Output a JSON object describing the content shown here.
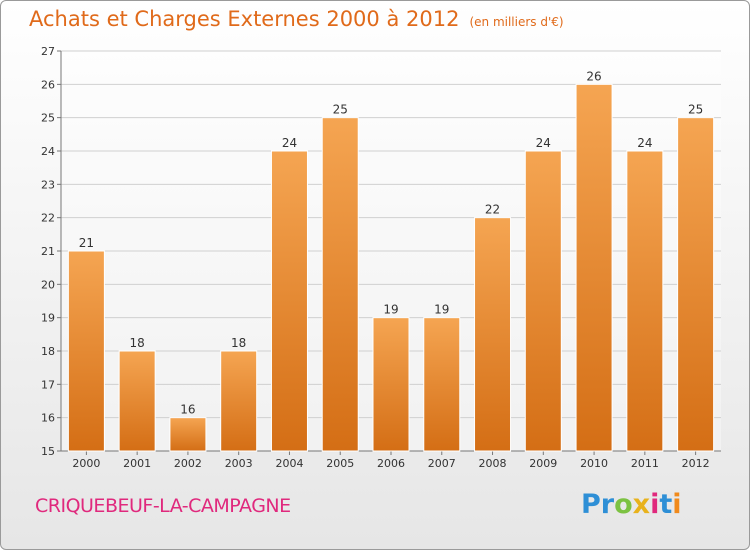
{
  "title": "Achats et Charges Externes 2000 à 2012",
  "subtitle": "(en milliers d'€)",
  "town": "CRIQUEBEUF-LA-CAMPAGNE",
  "logo": {
    "p1": "Pr",
    "p2": "o",
    "p3": "x",
    "p4": "i",
    "p5": "t",
    "p6": "i"
  },
  "colors": {
    "bar_top": "#f5a552",
    "bar_bottom": "#d46e15",
    "title": "#e06a1a",
    "town": "#e0297d"
  },
  "chart_data": {
    "type": "bar",
    "title": "Achats et Charges Externes 2000 à 2012",
    "subtitle": "(en milliers d'€)",
    "categories": [
      "2000",
      "2001",
      "2002",
      "2003",
      "2004",
      "2005",
      "2006",
      "2007",
      "2008",
      "2009",
      "2010",
      "2011",
      "2012"
    ],
    "values": [
      21,
      18,
      16,
      18,
      24,
      25,
      19,
      19,
      22,
      24,
      26,
      24,
      25
    ],
    "xlabel": "",
    "ylabel": "",
    "ylim": [
      15,
      27
    ],
    "yticks": [
      15,
      16,
      17,
      18,
      19,
      20,
      21,
      22,
      23,
      24,
      25,
      26,
      27
    ],
    "grid": true,
    "legend": "none"
  }
}
